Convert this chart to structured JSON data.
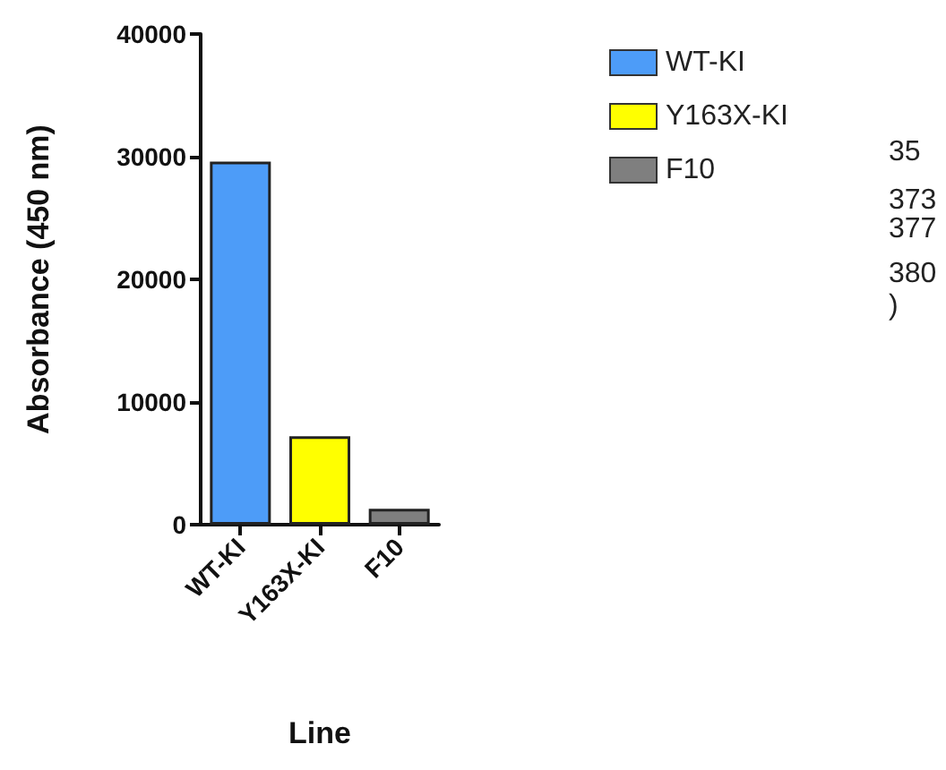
{
  "chart_data": {
    "type": "bar",
    "ylabel": "Absorbance (450 nm)",
    "xlabel": "Line",
    "categories": [
      "WT-KI",
      "Y163X-KI",
      "F10"
    ],
    "series": [
      {
        "name": "WT-KI",
        "color": "#4d9cf8",
        "values": [
          29600,
          null,
          null
        ]
      },
      {
        "name": "Y163X-KI",
        "color": "#ffff00",
        "values": [
          null,
          7200,
          null
        ]
      },
      {
        "name": "F10",
        "color": "#7f7f7f",
        "values": [
          null,
          null,
          1300
        ]
      }
    ],
    "ylim": [
      0,
      40000
    ],
    "yticks": [
      0,
      10000,
      20000,
      30000,
      40000
    ],
    "grid": false,
    "legend": "right",
    "annotations": [
      "35",
      "373",
      "377",
      "380",
      ")"
    ]
  }
}
